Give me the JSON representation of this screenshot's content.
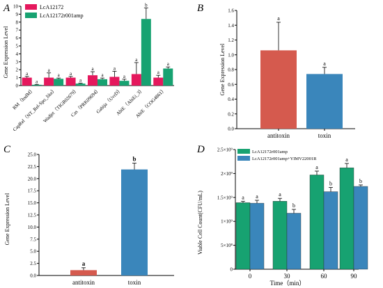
{
  "colors": {
    "pink": "#e5185d",
    "green": "#17a271",
    "red": "#d55a4e",
    "blue": "#3a86bb",
    "axis": "#000000"
  },
  "chart_data": [
    {
      "panel": "A",
      "type": "bar",
      "ylabel": "Gene Expression Level",
      "ylim": [
        0,
        10
      ],
      "yticks": [
        "0",
        "1",
        "2",
        "3",
        "4",
        "5",
        "6",
        "7",
        "8",
        "9",
        "10"
      ],
      "categories": [
        "RM（hsdM）",
        "CapRel（NT_Rel-Spo_like）",
        "Wadjet（TIGR02679）",
        "Cas（PRK09694）",
        "Gabija（UvrD）",
        "AbiE（AbiEi_3）",
        "AbiE（COG4861）"
      ],
      "series": [
        {
          "name": "LcA12172",
          "values": [
            1.0,
            1.0,
            1.0,
            1.3,
            1.1,
            1.45,
            1.0
          ],
          "errors": [
            0.15,
            0.6,
            0.15,
            0.45,
            0.7,
            1.45,
            0.3
          ],
          "labels": [
            "a",
            "a",
            "a",
            "a",
            "a",
            "a",
            "a"
          ]
        },
        {
          "name": "LcA12172r001amp",
          "values": [
            0.1,
            0.85,
            0.25,
            0.8,
            0.6,
            8.4,
            2.15
          ],
          "errors": [
            0.05,
            0.1,
            0.05,
            0.15,
            0.2,
            1.4,
            0.2
          ],
          "labels": [
            "a",
            "a",
            "a",
            "a",
            "a",
            "b",
            "a"
          ]
        }
      ],
      "legend": "top-left"
    },
    {
      "panel": "B",
      "type": "bar",
      "ylabel": "Gene Expression Level",
      "ylim": [
        0,
        1.6
      ],
      "yticks": [
        "0.0",
        "0.2",
        "0.4",
        "0.6",
        "0.8",
        "1.0",
        "1.2",
        "1.4",
        "1.6"
      ],
      "categories": [
        "antitoxin",
        "toxin"
      ],
      "values": [
        1.06,
        0.74
      ],
      "errors": [
        0.38,
        0.09
      ],
      "labels": [
        "a",
        "a"
      ]
    },
    {
      "panel": "C",
      "type": "bar",
      "ylabel": "Gene Expression Level",
      "ylim": [
        0,
        25
      ],
      "yticks": [
        "0.0",
        "2.5",
        "5.0",
        "7.5",
        "10.0",
        "12.5",
        "15.0",
        "17.5",
        "20.0",
        "22.5",
        "25.0"
      ],
      "categories": [
        "antitoxin",
        "toxin"
      ],
      "values": [
        1.1,
        21.9
      ],
      "errors": [
        0.5,
        1.3
      ],
      "labels": [
        "a",
        "b"
      ]
    },
    {
      "panel": "D",
      "type": "bar",
      "ylabel": "Viable Cell Count(CFU/mL)",
      "xlabel": "Time（min）",
      "ylim": [
        0,
        2500000000
      ],
      "yticks": [
        "0",
        "5×10⁸",
        "1×10⁹",
        "1.5×10⁹",
        "2×10⁹",
        "2.5×10⁹"
      ],
      "categories": [
        "0",
        "30",
        "60",
        "90"
      ],
      "series": [
        {
          "name": "LcA12172r001amp",
          "values": [
            1390000000,
            1420000000,
            1970000000,
            2120000000
          ],
          "errors": [
            30000000,
            60000000,
            80000000,
            90000000
          ],
          "labels": [
            "a",
            "a",
            "a",
            "a"
          ]
        },
        {
          "name": "LcA12172r001amp+YIMV22001R",
          "values": [
            1380000000,
            1170000000,
            1620000000,
            1730000000
          ],
          "errors": [
            60000000,
            80000000,
            90000000,
            30000000
          ],
          "labels": [
            "a",
            "b",
            "b",
            "b"
          ]
        }
      ],
      "legend": "top-left"
    }
  ]
}
